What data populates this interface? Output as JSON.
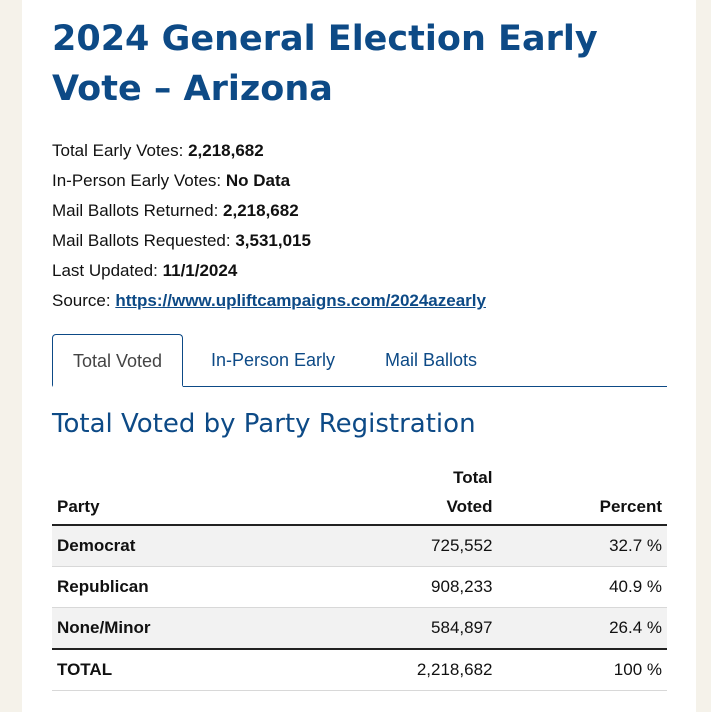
{
  "page": {
    "title": "2024 General Election Early Vote – Arizona"
  },
  "summary": {
    "total_early_votes_label": "Total Early Votes:",
    "total_early_votes_value": "2,218,682",
    "in_person_label": "In-Person Early Votes:",
    "in_person_value": "No Data",
    "mail_returned_label": "Mail Ballots Returned:",
    "mail_returned_value": "2,218,682",
    "mail_requested_label": "Mail Ballots Requested:",
    "mail_requested_value": "3,531,015",
    "last_updated_label": "Last Updated:",
    "last_updated_value": "11/1/2024",
    "source_label": "Source:",
    "source_link": "https://www.upliftcampaigns.com/2024azearly"
  },
  "tabs": [
    {
      "label": "Total Voted"
    },
    {
      "label": "In-Person Early"
    },
    {
      "label": "Mail Ballots"
    }
  ],
  "section": {
    "title": "Total Voted by Party Registration"
  },
  "table": {
    "headers": {
      "party": "Party",
      "total_voted_line1": "Total",
      "total_voted_line2": "Voted",
      "percent": "Percent"
    },
    "rows": [
      {
        "party": "Democrat",
        "voted": "725,552",
        "percent": "32.7 %"
      },
      {
        "party": "Republican",
        "voted": "908,233",
        "percent": "40.9 %"
      },
      {
        "party": "None/Minor",
        "voted": "584,897",
        "percent": "26.4 %"
      }
    ],
    "total": {
      "party": "TOTAL",
      "voted": "2,218,682",
      "percent": "100 %"
    }
  }
}
